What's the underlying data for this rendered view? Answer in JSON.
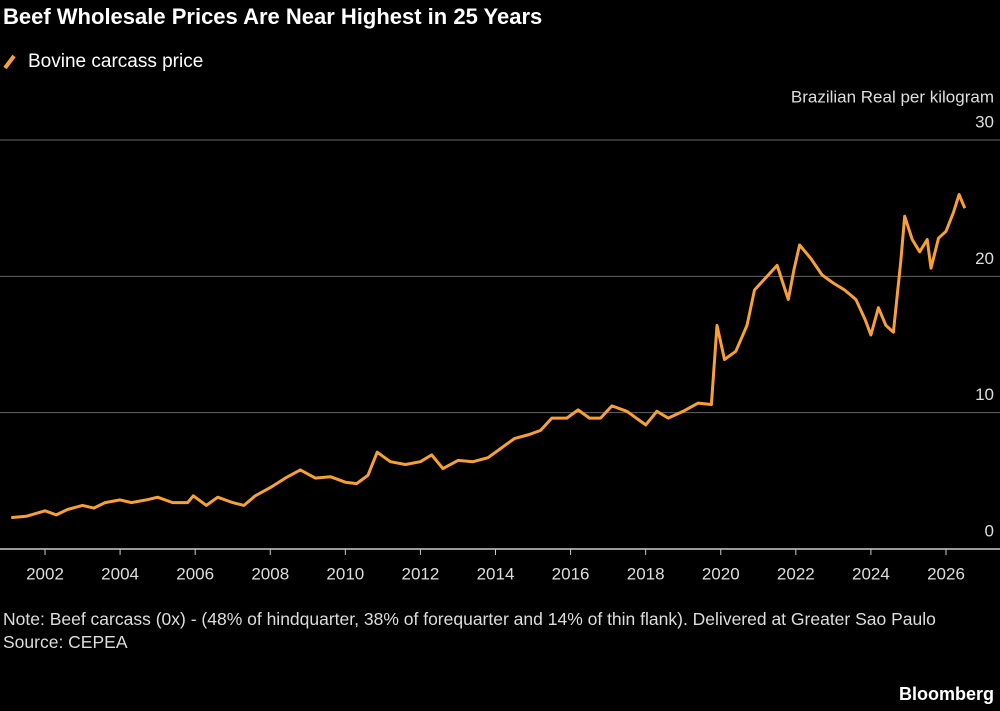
{
  "chart_data": {
    "type": "line",
    "title": "Beef Wholesale Prices Are Near Highest in 25 Years",
    "y_label": "Brazilian Real per kilogram",
    "note": "Note: Beef carcass (0x) - (48% of hindquarter, 38% of forequarter and 14% of thin flank). Delivered at Greater Sao Paulo",
    "source": "Source: CEPEA",
    "credit": "Bloomberg",
    "x": [
      2001.1,
      2001.5,
      2002.0,
      2002.3,
      2002.6,
      2003.0,
      2003.3,
      2003.6,
      2004.0,
      2004.3,
      2004.7,
      2005.0,
      2005.4,
      2005.8,
      2005.95,
      2006.3,
      2006.6,
      2007.0,
      2007.3,
      2007.6,
      2008.0,
      2008.4,
      2008.8,
      2009.2,
      2009.6,
      2010.0,
      2010.3,
      2010.6,
      2010.85,
      2011.2,
      2011.6,
      2012.0,
      2012.3,
      2012.6,
      2013.0,
      2013.4,
      2013.8,
      2014.1,
      2014.5,
      2014.9,
      2015.2,
      2015.5,
      2015.9,
      2016.2,
      2016.5,
      2016.8,
      2017.1,
      2017.5,
      2017.8,
      2018.0,
      2018.3,
      2018.6,
      2019.0,
      2019.4,
      2019.75,
      2019.9,
      2020.1,
      2020.4,
      2020.7,
      2020.9,
      2021.2,
      2021.5,
      2021.8,
      2021.95,
      2022.1,
      2022.4,
      2022.7,
      2023.0,
      2023.3,
      2023.6,
      2023.85,
      2024.0,
      2024.2,
      2024.4,
      2024.6,
      2024.8,
      2024.9,
      2025.1,
      2025.3,
      2025.5,
      2025.6,
      2025.8,
      2026.0,
      2026.2,
      2026.35,
      2026.5
    ],
    "series": [
      {
        "name": "Bovine carcass price",
        "color": "#f7a035",
        "values": [
          2.3,
          2.4,
          2.8,
          2.5,
          2.9,
          3.2,
          3.0,
          3.4,
          3.6,
          3.4,
          3.6,
          3.8,
          3.4,
          3.4,
          3.9,
          3.2,
          3.8,
          3.4,
          3.2,
          3.9,
          4.5,
          5.2,
          5.8,
          5.2,
          5.3,
          4.9,
          4.8,
          5.4,
          7.1,
          6.4,
          6.2,
          6.4,
          6.9,
          5.9,
          6.5,
          6.4,
          6.7,
          7.3,
          8.1,
          8.4,
          8.7,
          9.6,
          9.6,
          10.2,
          9.6,
          9.6,
          10.5,
          10.1,
          9.5,
          9.1,
          10.1,
          9.6,
          10.1,
          10.7,
          10.6,
          16.4,
          13.9,
          14.5,
          16.4,
          19.0,
          19.9,
          20.8,
          18.3,
          20.5,
          22.3,
          21.3,
          20.1,
          19.5,
          19.0,
          18.3,
          16.8,
          15.7,
          17.7,
          16.4,
          15.9,
          21.2,
          24.4,
          22.7,
          21.8,
          22.7,
          20.6,
          22.8,
          23.3,
          24.7,
          26.0,
          25.0
        ]
      }
    ],
    "xlim": [
      2001.0,
      2026.8
    ],
    "xticks": [
      2002,
      2004,
      2006,
      2008,
      2010,
      2012,
      2014,
      2016,
      2018,
      2020,
      2022,
      2024,
      2026
    ],
    "ylim": [
      0,
      30
    ],
    "yticks": [
      0,
      10,
      20,
      30
    ],
    "grid": true
  }
}
